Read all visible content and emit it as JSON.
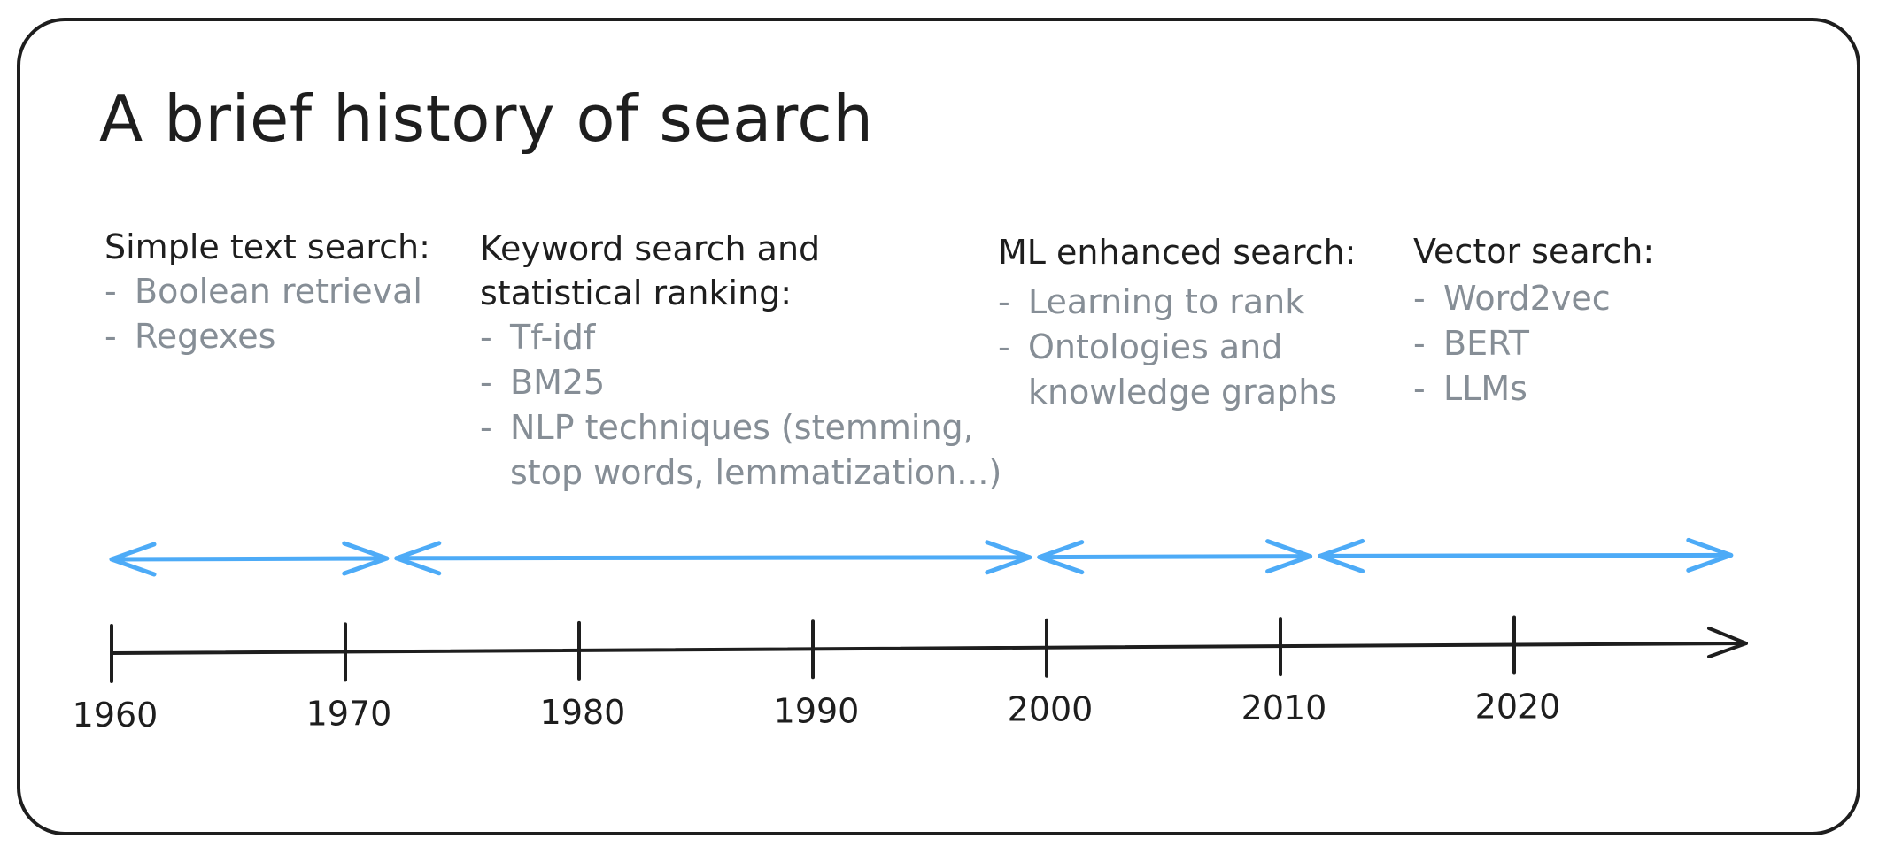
{
  "title": "A brief history of search",
  "colors": {
    "stroke": "#1e1e1e",
    "text_muted": "#868e96",
    "arrow": "#4dabf7"
  },
  "eras": [
    {
      "heading_lines": [
        "Simple text search:"
      ],
      "items": [
        [
          "Boolean retrieval"
        ],
        [
          "Regexes"
        ]
      ],
      "start_year": 1960,
      "end_year": 1972
    },
    {
      "heading_lines": [
        "Keyword search and",
        "statistical ranking:"
      ],
      "items": [
        [
          "Tf-idf"
        ],
        [
          "BM25"
        ],
        [
          "NLP techniques (stemming,",
          "stop words, lemmatization...)"
        ]
      ],
      "start_year": 1972,
      "end_year": 1999.5
    },
    {
      "heading_lines": [
        "ML enhanced search:"
      ],
      "items": [
        [
          "Learning to rank"
        ],
        [
          "Ontologies and",
          "knowledge graphs"
        ]
      ],
      "start_year": 1999.5,
      "end_year": 2011.5
    },
    {
      "heading_lines": [
        "Vector search:"
      ],
      "items": [
        [
          "Word2vec"
        ],
        [
          "BERT"
        ],
        [
          "LLMs"
        ]
      ],
      "start_year": 2011.5,
      "end_year": 2029.5
    }
  ],
  "timeline": {
    "years": [
      "1960",
      "1970",
      "1980",
      "1990",
      "2000",
      "2010",
      "2020"
    ]
  }
}
